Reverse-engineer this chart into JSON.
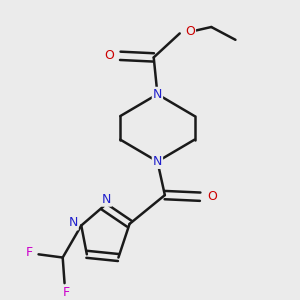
{
  "background_color": "#ebebeb",
  "bond_color": "#1a1a1a",
  "nitrogen_color": "#2020cc",
  "oxygen_color": "#cc0000",
  "fluorine_color": "#cc00cc",
  "line_width": 1.8,
  "figsize": [
    3.0,
    3.0
  ],
  "dpi": 100,
  "xlim": [
    0.1,
    0.9
  ],
  "ylim": [
    0.05,
    0.95
  ]
}
